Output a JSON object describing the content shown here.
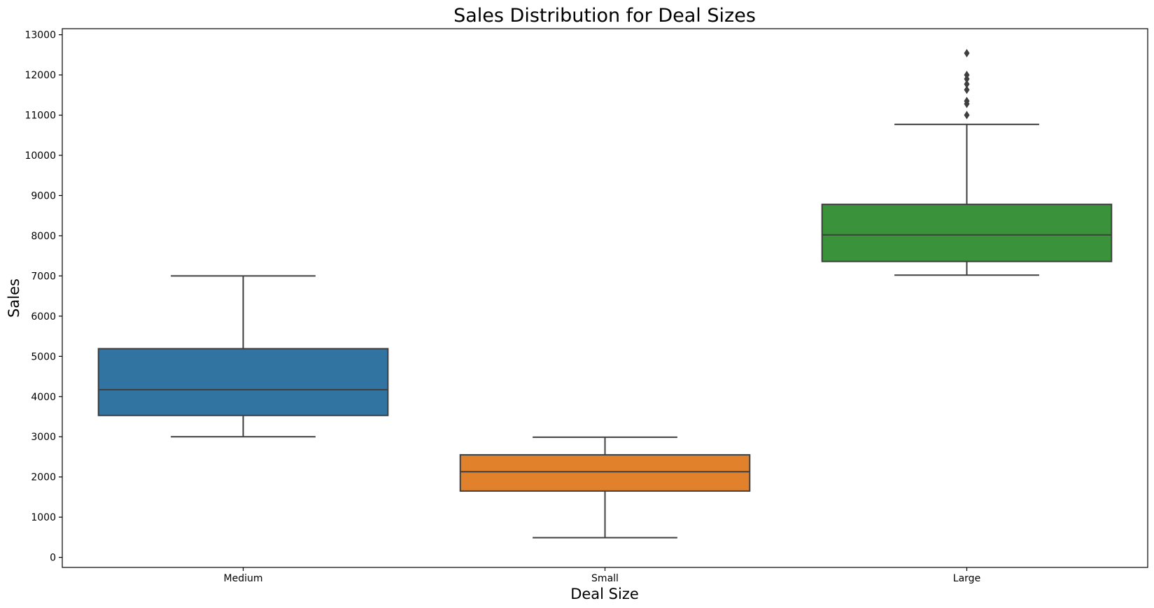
{
  "chart_data": {
    "type": "box",
    "title": "Sales Distribution for Deal Sizes",
    "xlabel": "Deal Size",
    "ylabel": "Sales",
    "ylim": [
      -250,
      13150
    ],
    "yticks": [
      0,
      1000,
      2000,
      3000,
      4000,
      5000,
      6000,
      7000,
      8000,
      9000,
      10000,
      11000,
      12000,
      13000
    ],
    "categories": [
      "Medium",
      "Small",
      "Large"
    ],
    "boxes": [
      {
        "category": "Medium",
        "color": "#3274a1",
        "whisker_low": 3000,
        "q1": 3530,
        "median": 4170,
        "q3": 5190,
        "whisker_high": 7000,
        "outliers": []
      },
      {
        "category": "Small",
        "color": "#e1812c",
        "whisker_low": 490,
        "q1": 1650,
        "median": 2130,
        "q3": 2550,
        "whisker_high": 2990,
        "outliers": []
      },
      {
        "category": "Large",
        "color": "#3a923a",
        "whisker_low": 7020,
        "q1": 7360,
        "median": 8020,
        "q3": 8780,
        "whisker_high": 10770,
        "outliers": [
          11000,
          11280,
          11350,
          11630,
          11770,
          11900,
          12000,
          12540
        ]
      }
    ],
    "grid": false,
    "legend": "none"
  }
}
